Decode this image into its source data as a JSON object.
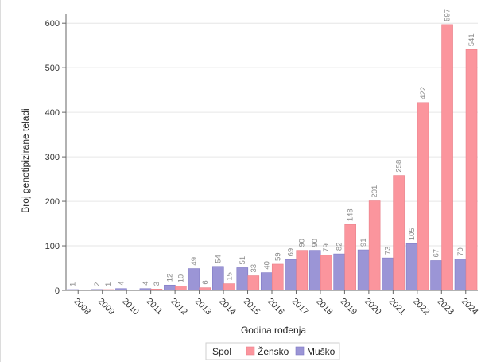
{
  "chart_data": {
    "type": "bar",
    "xlabel": "Godina rođenja",
    "ylabel": "Broj genotipizirane teladi",
    "ylim": [
      0,
      620
    ],
    "yticks": [
      0,
      100,
      200,
      300,
      400,
      500,
      600
    ],
    "grid": true,
    "legend": {
      "title": "Spol",
      "placement": "bottom-center"
    },
    "categories": [
      "2008",
      "2009",
      "2010",
      "2011",
      "2012",
      "2013",
      "2014",
      "2015",
      "2016",
      "2017",
      "2018",
      "2019",
      "2020",
      "2021",
      "2022",
      "2023",
      "2024"
    ],
    "series": [
      {
        "name": "Muško",
        "color": "#9b95d6",
        "values": [
          1,
          2,
          4,
          4,
          12,
          49,
          54,
          51,
          40,
          69,
          90,
          82,
          91,
          73,
          105,
          67,
          70
        ]
      },
      {
        "name": "Žensko",
        "color": "#fb959d",
        "values": [
          null,
          1,
          null,
          3,
          10,
          6,
          15,
          33,
          59,
          90,
          79,
          148,
          201,
          258,
          422,
          597,
          541
        ]
      }
    ]
  }
}
